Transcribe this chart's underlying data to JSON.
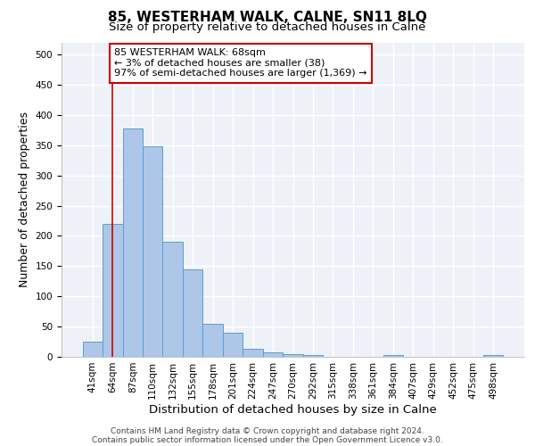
{
  "title1": "85, WESTERHAM WALK, CALNE, SN11 8LQ",
  "title2": "Size of property relative to detached houses in Calne",
  "xlabel": "Distribution of detached houses by size in Calne",
  "ylabel": "Number of detached properties",
  "categories": [
    "41sqm",
    "64sqm",
    "87sqm",
    "110sqm",
    "132sqm",
    "155sqm",
    "178sqm",
    "201sqm",
    "224sqm",
    "247sqm",
    "270sqm",
    "292sqm",
    "315sqm",
    "338sqm",
    "361sqm",
    "384sqm",
    "407sqm",
    "429sqm",
    "452sqm",
    "475sqm",
    "498sqm"
  ],
  "values": [
    25,
    220,
    378,
    348,
    190,
    145,
    55,
    40,
    13,
    8,
    5,
    3,
    0,
    0,
    0,
    3,
    0,
    0,
    0,
    0,
    3
  ],
  "bar_color": "#aec6e8",
  "bar_edge_color": "#5a9fd4",
  "red_line_x": 1.0,
  "annotation_text": "85 WESTERHAM WALK: 68sqm\n← 3% of detached houses are smaller (38)\n97% of semi-detached houses are larger (1,369) →",
  "annotation_box_color": "#ffffff",
  "annotation_box_edge": "#cc0000",
  "ylim": [
    0,
    520
  ],
  "yticks": [
    0,
    50,
    100,
    150,
    200,
    250,
    300,
    350,
    400,
    450,
    500
  ],
  "footer_line1": "Contains HM Land Registry data © Crown copyright and database right 2024.",
  "footer_line2": "Contains public sector information licensed under the Open Government Licence v3.0.",
  "bg_color": "#eef2f8",
  "grid_color": "#ffffff",
  "title1_fontsize": 11,
  "title2_fontsize": 9.5,
  "xlabel_fontsize": 9.5,
  "ylabel_fontsize": 9,
  "tick_fontsize": 7.5,
  "annotation_fontsize": 8,
  "footer_fontsize": 6.5
}
